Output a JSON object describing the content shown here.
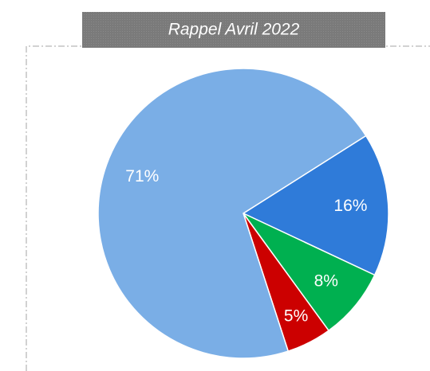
{
  "chart_data": {
    "type": "pie",
    "title": "Rappel Avril 2022",
    "categories": [
      null,
      null,
      null,
      null
    ],
    "values": [
      16,
      8,
      5,
      71
    ],
    "value_labels": [
      "16%",
      "8%",
      "5%",
      "71%"
    ],
    "colors": [
      "#2f7bd9",
      "#00b050",
      "#cc0000",
      "#7aaee6"
    ]
  }
}
